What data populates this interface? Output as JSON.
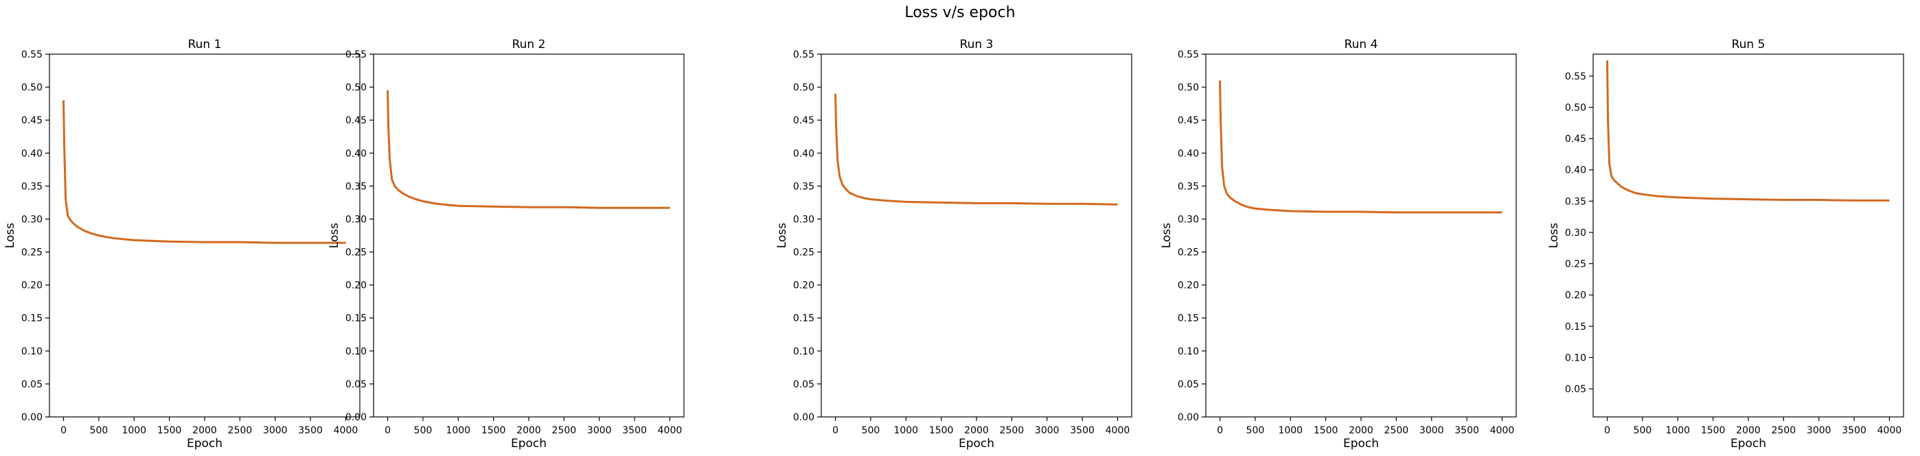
{
  "figure": {
    "title": "Loss v/s epoch"
  },
  "chart_data": [
    {
      "type": "line",
      "title": "Run 1",
      "xlabel": "Epoch",
      "ylabel": "Loss",
      "xlim": [
        -200,
        4200
      ],
      "ylim": [
        0,
        0.55
      ],
      "xticks": [
        0,
        500,
        1000,
        1500,
        2000,
        2500,
        3000,
        3500,
        4000
      ],
      "yticks": [
        "0.00",
        "0.05",
        "0.10",
        "0.15",
        "0.20",
        "0.25",
        "0.30",
        "0.35",
        "0.40",
        "0.45",
        "0.50",
        "0.55"
      ],
      "grid": false,
      "series": [
        {
          "color": "#d2691e",
          "x": [
            0,
            10,
            30,
            60,
            100,
            150,
            200,
            300,
            400,
            500,
            700,
            1000,
            1500,
            2000,
            2500,
            3000,
            3500,
            4000
          ],
          "y": [
            0.48,
            0.41,
            0.33,
            0.305,
            0.298,
            0.292,
            0.288,
            0.282,
            0.278,
            0.275,
            0.271,
            0.268,
            0.266,
            0.265,
            0.265,
            0.264,
            0.264,
            0.264
          ]
        }
      ]
    },
    {
      "type": "line",
      "title": "Run 2",
      "xlabel": "Epoch",
      "ylabel": "Loss",
      "xlim": [
        -200,
        4200
      ],
      "ylim": [
        0,
        0.55
      ],
      "xticks": [
        0,
        500,
        1000,
        1500,
        2000,
        2500,
        3000,
        3500,
        4000
      ],
      "yticks": [
        "0.00",
        "0.05",
        "0.10",
        "0.15",
        "0.20",
        "0.25",
        "0.30",
        "0.35",
        "0.40",
        "0.45",
        "0.50",
        "0.55"
      ],
      "grid": false,
      "series": [
        {
          "color": "#d2691e",
          "x": [
            0,
            10,
            30,
            60,
            100,
            150,
            200,
            300,
            400,
            500,
            700,
            1000,
            1500,
            2000,
            2500,
            3000,
            3500,
            4000
          ],
          "y": [
            0.495,
            0.44,
            0.39,
            0.36,
            0.35,
            0.344,
            0.34,
            0.334,
            0.33,
            0.327,
            0.323,
            0.32,
            0.319,
            0.318,
            0.318,
            0.317,
            0.317,
            0.317
          ]
        }
      ]
    },
    {
      "type": "line",
      "title": "Run 3",
      "xlabel": "Epoch",
      "ylabel": "Loss",
      "xlim": [
        -200,
        4200
      ],
      "ylim": [
        0,
        0.55
      ],
      "xticks": [
        0,
        500,
        1000,
        1500,
        2000,
        2500,
        3000,
        3500,
        4000
      ],
      "yticks": [
        "0.00",
        "0.05",
        "0.10",
        "0.15",
        "0.20",
        "0.25",
        "0.30",
        "0.35",
        "0.40",
        "0.45",
        "0.50",
        "0.55"
      ],
      "grid": false,
      "series": [
        {
          "color": "#d2691e",
          "x": [
            0,
            10,
            30,
            60,
            100,
            150,
            200,
            300,
            400,
            500,
            700,
            1000,
            1500,
            2000,
            2500,
            3000,
            3500,
            4000
          ],
          "y": [
            0.49,
            0.44,
            0.39,
            0.365,
            0.352,
            0.345,
            0.34,
            0.335,
            0.332,
            0.33,
            0.328,
            0.326,
            0.325,
            0.324,
            0.324,
            0.323,
            0.323,
            0.322
          ]
        }
      ]
    },
    {
      "type": "line",
      "title": "Run 4",
      "xlabel": "Epoch",
      "ylabel": "Loss",
      "xlim": [
        -200,
        4200
      ],
      "ylim": [
        0,
        0.55
      ],
      "xticks": [
        0,
        500,
        1000,
        1500,
        2000,
        2500,
        3000,
        3500,
        4000
      ],
      "yticks": [
        "0.00",
        "0.05",
        "0.10",
        "0.15",
        "0.20",
        "0.25",
        "0.30",
        "0.35",
        "0.40",
        "0.45",
        "0.50",
        "0.55"
      ],
      "grid": false,
      "series": [
        {
          "color": "#d2691e",
          "x": [
            0,
            10,
            30,
            60,
            100,
            150,
            200,
            300,
            400,
            500,
            700,
            1000,
            1500,
            2000,
            2500,
            3000,
            3500,
            4000
          ],
          "y": [
            0.51,
            0.45,
            0.38,
            0.35,
            0.338,
            0.332,
            0.328,
            0.322,
            0.318,
            0.316,
            0.314,
            0.312,
            0.311,
            0.311,
            0.31,
            0.31,
            0.31,
            0.31
          ]
        }
      ]
    },
    {
      "type": "line",
      "title": "Run 5",
      "xlabel": "Epoch",
      "ylabel": "Loss",
      "xlim": [
        -200,
        4200
      ],
      "ylim": [
        0.005,
        0.585
      ],
      "xticks": [
        0,
        500,
        1000,
        1500,
        2000,
        2500,
        3000,
        3500,
        4000
      ],
      "yticks": [
        "0.05",
        "0.10",
        "0.15",
        "0.20",
        "0.25",
        "0.30",
        "0.35",
        "0.40",
        "0.45",
        "0.50",
        "0.55"
      ],
      "grid": false,
      "series": [
        {
          "color": "#d2691e",
          "x": [
            0,
            10,
            30,
            60,
            100,
            150,
            200,
            300,
            400,
            500,
            700,
            1000,
            1500,
            2000,
            2500,
            3000,
            3500,
            4000
          ],
          "y": [
            0.575,
            0.48,
            0.41,
            0.39,
            0.383,
            0.378,
            0.373,
            0.367,
            0.363,
            0.361,
            0.358,
            0.356,
            0.354,
            0.353,
            0.352,
            0.352,
            0.351,
            0.351
          ]
        }
      ]
    }
  ]
}
